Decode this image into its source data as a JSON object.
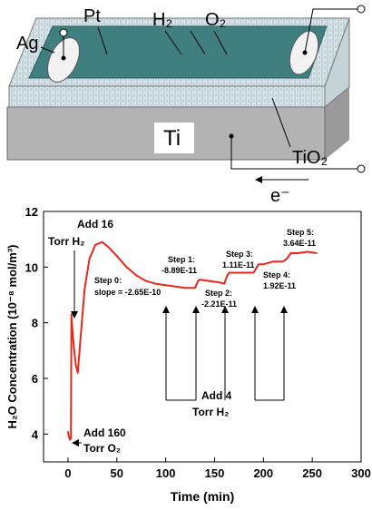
{
  "diagram": {
    "labels": {
      "ag": "Ag",
      "pt": "Pt",
      "h2": "H₂",
      "o2": "O₂",
      "ti": "Ti",
      "tio2": "TiO₂",
      "electron": "e⁻"
    }
  },
  "chart_data": {
    "type": "line",
    "x": [
      0,
      1,
      2,
      3,
      3.5,
      5,
      8,
      10,
      13,
      17,
      22,
      28,
      35,
      42,
      50,
      60,
      70,
      80,
      90,
      100,
      110,
      120,
      130,
      133,
      135,
      145,
      155,
      160,
      163,
      165,
      175,
      185,
      190,
      195,
      200,
      210,
      220,
      224,
      228,
      235,
      245,
      255
    ],
    "values": [
      4.1,
      3.9,
      3.8,
      3.85,
      8.3,
      7.5,
      6.5,
      6.2,
      7.5,
      9.2,
      10.3,
      10.8,
      10.9,
      10.7,
      10.4,
      10.0,
      9.7,
      9.5,
      9.4,
      9.35,
      9.3,
      9.25,
      9.25,
      9.5,
      9.55,
      9.5,
      9.45,
      9.4,
      9.7,
      9.8,
      9.8,
      9.8,
      9.8,
      10.1,
      10.1,
      10.2,
      10.2,
      10.3,
      10.5,
      10.5,
      10.55,
      10.5
    ],
    "color": "#e8261a",
    "x_label": "Time (min)",
    "y_label": "H₂O Concentration (10⁻⁸ mol/m³)",
    "xlim": [
      -25,
      300
    ],
    "xticks": [
      0,
      50,
      100,
      150,
      200,
      250,
      300
    ],
    "ylim": [
      3,
      12
    ],
    "yticks": [
      4,
      6,
      8,
      10,
      12
    ],
    "annotations": [
      {
        "lines": [
          "Add 16",
          "Torr H₂"
        ]
      },
      {
        "lines": [
          "Step 0:",
          "slope = -2.65E-10"
        ]
      },
      {
        "lines": [
          "Step 1:",
          "-8.89E-11"
        ]
      },
      {
        "lines": [
          "Step 2:",
          "-2.21E-11"
        ]
      },
      {
        "lines": [
          "Step 3:",
          "1.11E-11"
        ]
      },
      {
        "lines": [
          "Step 4:",
          "1.92E-11"
        ]
      },
      {
        "lines": [
          "Step 5:",
          "3.64E-11"
        ]
      },
      {
        "lines": [
          "Add 4",
          "Torr H₂"
        ]
      },
      {
        "lines": [
          "Add 160",
          "Torr O₂"
        ]
      }
    ]
  }
}
